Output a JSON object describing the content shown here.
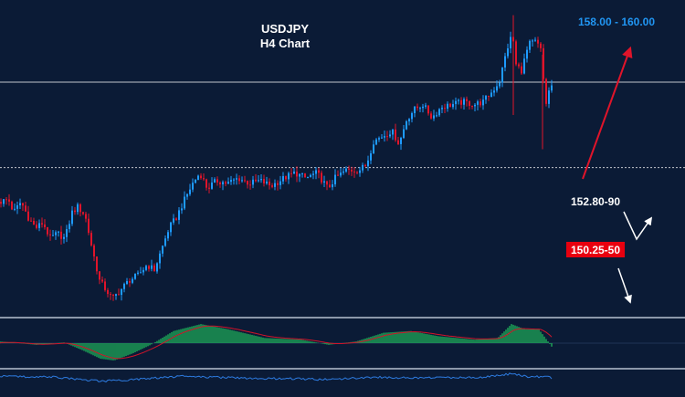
{
  "chart_data": {
    "type": "candlestick",
    "title": "USDJPY",
    "subtitle": "H4 Chart",
    "colors": {
      "background": "#0b1b36",
      "bull": "#1e9bff",
      "bear": "#e0142a",
      "level_line": "#ffffff",
      "target_text": "#2196f3",
      "support_box": "#e8000f",
      "histogram": "#22c55e",
      "signal": "#d0142a",
      "osc_line": "#2d7be0"
    },
    "ylim": [
      147.4,
      159.0
    ],
    "levels": [
      {
        "name": "current-price-line",
        "value": 156.15,
        "style": "solid"
      },
      {
        "name": "resistance-level-line",
        "value": 152.9,
        "style": "dotted"
      }
    ],
    "annotations": [
      {
        "name": "target-label",
        "text": "158.00 - 160.00",
        "kind": "target"
      },
      {
        "name": "resistance-label",
        "text": "152.80-90",
        "kind": "plain"
      },
      {
        "name": "support-label",
        "text": "150.25-50",
        "kind": "boxed"
      }
    ],
    "keypoints": [
      [
        0,
        151.6
      ],
      [
        8,
        151.7
      ],
      [
        14,
        151.2
      ],
      [
        22,
        151.6
      ],
      [
        30,
        151.0
      ],
      [
        38,
        150.6
      ],
      [
        46,
        150.8
      ],
      [
        54,
        150.2
      ],
      [
        62,
        150.4
      ],
      [
        70,
        150.2
      ],
      [
        78,
        151.2
      ],
      [
        84,
        151.4
      ],
      [
        92,
        151.1
      ],
      [
        100,
        149.8
      ],
      [
        108,
        148.6
      ],
      [
        116,
        148.2
      ],
      [
        122,
        147.9
      ],
      [
        130,
        148.2
      ],
      [
        140,
        148.6
      ],
      [
        150,
        148.8
      ],
      [
        160,
        149.2
      ],
      [
        168,
        149.0
      ],
      [
        176,
        149.8
      ],
      [
        184,
        150.6
      ],
      [
        192,
        151.0
      ],
      [
        200,
        151.6
      ],
      [
        210,
        152.3
      ],
      [
        218,
        152.7
      ],
      [
        226,
        152.1
      ],
      [
        236,
        152.4
      ],
      [
        248,
        152.3
      ],
      [
        260,
        152.5
      ],
      [
        272,
        152.3
      ],
      [
        284,
        152.4
      ],
      [
        296,
        152.2
      ],
      [
        310,
        152.5
      ],
      [
        322,
        152.7
      ],
      [
        334,
        152.5
      ],
      [
        346,
        152.7
      ],
      [
        358,
        152.1
      ],
      [
        366,
        152.5
      ],
      [
        378,
        152.8
      ],
      [
        392,
        152.8
      ],
      [
        400,
        153.0
      ],
      [
        408,
        153.9
      ],
      [
        418,
        154.1
      ],
      [
        428,
        154.3
      ],
      [
        436,
        153.8
      ],
      [
        444,
        154.7
      ],
      [
        452,
        155.1
      ],
      [
        462,
        155.3
      ],
      [
        472,
        154.8
      ],
      [
        482,
        155.2
      ],
      [
        494,
        155.3
      ],
      [
        506,
        155.4
      ],
      [
        518,
        155.3
      ],
      [
        528,
        155.4
      ],
      [
        538,
        155.8
      ],
      [
        546,
        156.2
      ],
      [
        554,
        157.4
      ],
      [
        560,
        158.0
      ],
      [
        564,
        156.8
      ],
      [
        570,
        156.6
      ],
      [
        578,
        157.6
      ],
      [
        586,
        157.7
      ],
      [
        592,
        157.3
      ],
      [
        596,
        155.2
      ],
      [
        600,
        155.8
      ],
      [
        604,
        156.1
      ]
    ],
    "spikes": [
      {
        "x": 562,
        "high": 158.7,
        "low": 154.9
      },
      {
        "x": 594,
        "high": 157.2,
        "low": 153.6
      }
    ],
    "macd_keypoints": [
      [
        0,
        0.05
      ],
      [
        40,
        -0.05
      ],
      [
        70,
        0.02
      ],
      [
        90,
        -0.2
      ],
      [
        110,
        -0.45
      ],
      [
        125,
        -0.5
      ],
      [
        145,
        -0.3
      ],
      [
        165,
        -0.05
      ],
      [
        190,
        0.35
      ],
      [
        220,
        0.55
      ],
      [
        250,
        0.4
      ],
      [
        290,
        0.15
      ],
      [
        330,
        0.1
      ],
      [
        360,
        -0.05
      ],
      [
        390,
        0.05
      ],
      [
        420,
        0.3
      ],
      [
        450,
        0.35
      ],
      [
        480,
        0.2
      ],
      [
        520,
        0.1
      ],
      [
        545,
        0.15
      ],
      [
        560,
        0.55
      ],
      [
        575,
        0.4
      ],
      [
        590,
        0.4
      ],
      [
        600,
        0.05
      ],
      [
        604,
        -0.1
      ]
    ],
    "osc_keypoints": [
      [
        0,
        0.3
      ],
      [
        60,
        0.2
      ],
      [
        110,
        -0.3
      ],
      [
        130,
        -0.2
      ],
      [
        200,
        0.3
      ],
      [
        260,
        0.1
      ],
      [
        320,
        0.0
      ],
      [
        360,
        -0.1
      ],
      [
        410,
        0.2
      ],
      [
        460,
        0.1
      ],
      [
        530,
        0.2
      ],
      [
        560,
        0.6
      ],
      [
        580,
        0.2
      ],
      [
        596,
        0.3
      ],
      [
        604,
        0.1
      ]
    ]
  }
}
